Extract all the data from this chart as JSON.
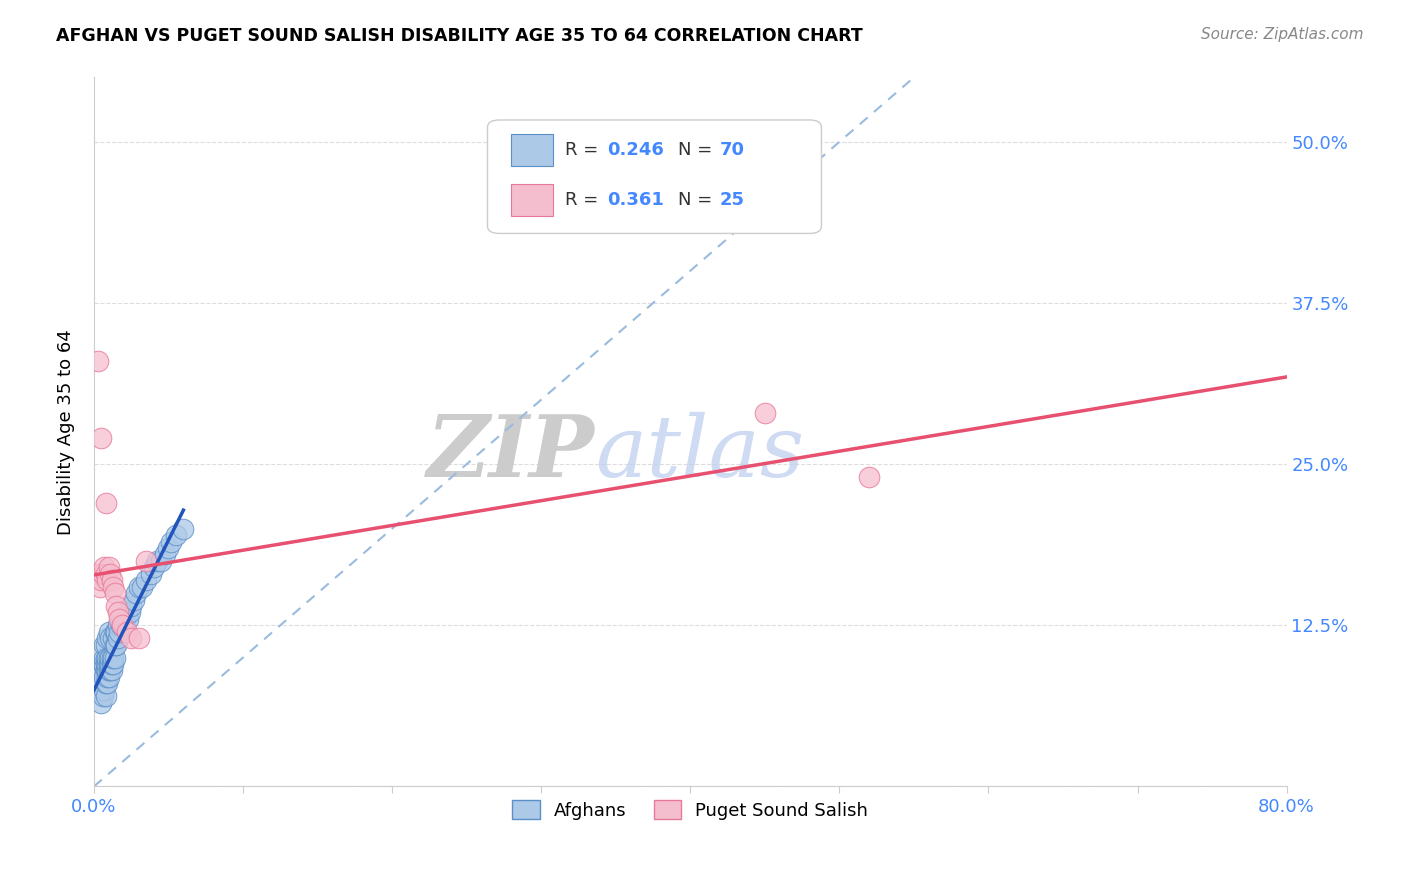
{
  "title": "AFGHAN VS PUGET SOUND SALISH DISABILITY AGE 35 TO 64 CORRELATION CHART",
  "source": "Source: ZipAtlas.com",
  "ylabel": "Disability Age 35 to 64",
  "xlim": [
    0.0,
    0.8
  ],
  "ylim": [
    0.0,
    0.55
  ],
  "xtick_pos": [
    0.0,
    0.1,
    0.2,
    0.3,
    0.4,
    0.5,
    0.6,
    0.7,
    0.8
  ],
  "xticklabels": [
    "0.0%",
    "",
    "",
    "",
    "",
    "",
    "",
    "",
    "80.0%"
  ],
  "ytick_pos": [
    0.0,
    0.125,
    0.25,
    0.375,
    0.5
  ],
  "yticklabels_right": [
    "",
    "12.5%",
    "25.0%",
    "37.5%",
    "50.0%"
  ],
  "afghan_color": "#adc9e8",
  "afghan_edge": "#5b8fc7",
  "salish_color": "#f5bece",
  "salish_edge": "#e87898",
  "blue_line_color": "#2255bb",
  "pink_line_color": "#e85070",
  "diag_line_color": "#99bbdd",
  "legend_R_afghan": "0.246",
  "legend_N_afghan": "70",
  "legend_R_salish": "0.361",
  "legend_N_salish": "25",
  "watermark_zip": "ZIP",
  "watermark_atlas": "atlas",
  "background_color": "#ffffff",
  "grid_color": "#dddddd",
  "tick_color": "#4488ff",
  "afghan_x": [
    0.004,
    0.005,
    0.005,
    0.005,
    0.006,
    0.006,
    0.006,
    0.006,
    0.007,
    0.007,
    0.007,
    0.007,
    0.007,
    0.008,
    0.008,
    0.008,
    0.008,
    0.008,
    0.008,
    0.009,
    0.009,
    0.009,
    0.009,
    0.009,
    0.009,
    0.01,
    0.01,
    0.01,
    0.01,
    0.01,
    0.011,
    0.011,
    0.011,
    0.011,
    0.012,
    0.012,
    0.012,
    0.013,
    0.013,
    0.013,
    0.014,
    0.014,
    0.014,
    0.015,
    0.015,
    0.016,
    0.016,
    0.017,
    0.018,
    0.019,
    0.02,
    0.021,
    0.022,
    0.023,
    0.024,
    0.025,
    0.027,
    0.028,
    0.03,
    0.032,
    0.035,
    0.038,
    0.04,
    0.042,
    0.045,
    0.048,
    0.05,
    0.052,
    0.055,
    0.06
  ],
  "afghan_y": [
    0.08,
    0.065,
    0.075,
    0.09,
    0.07,
    0.08,
    0.09,
    0.095,
    0.075,
    0.085,
    0.095,
    0.1,
    0.11,
    0.07,
    0.08,
    0.09,
    0.095,
    0.1,
    0.11,
    0.08,
    0.085,
    0.09,
    0.095,
    0.1,
    0.115,
    0.085,
    0.09,
    0.095,
    0.1,
    0.12,
    0.09,
    0.095,
    0.1,
    0.115,
    0.09,
    0.095,
    0.1,
    0.095,
    0.1,
    0.115,
    0.1,
    0.11,
    0.12,
    0.11,
    0.12,
    0.115,
    0.125,
    0.12,
    0.125,
    0.13,
    0.125,
    0.13,
    0.135,
    0.13,
    0.135,
    0.14,
    0.145,
    0.15,
    0.155,
    0.155,
    0.16,
    0.165,
    0.17,
    0.175,
    0.175,
    0.18,
    0.185,
    0.19,
    0.195,
    0.2
  ],
  "salish_x": [
    0.003,
    0.004,
    0.005,
    0.006,
    0.007,
    0.008,
    0.009,
    0.01,
    0.011,
    0.012,
    0.013,
    0.014,
    0.015,
    0.016,
    0.017,
    0.019,
    0.022,
    0.025,
    0.03,
    0.035,
    0.45,
    0.52,
    0.005,
    0.008,
    0.003
  ],
  "salish_y": [
    0.165,
    0.155,
    0.16,
    0.165,
    0.17,
    0.165,
    0.16,
    0.17,
    0.165,
    0.16,
    0.155,
    0.15,
    0.14,
    0.135,
    0.13,
    0.125,
    0.12,
    0.115,
    0.115,
    0.175,
    0.29,
    0.24,
    0.27,
    0.22,
    0.33
  ]
}
